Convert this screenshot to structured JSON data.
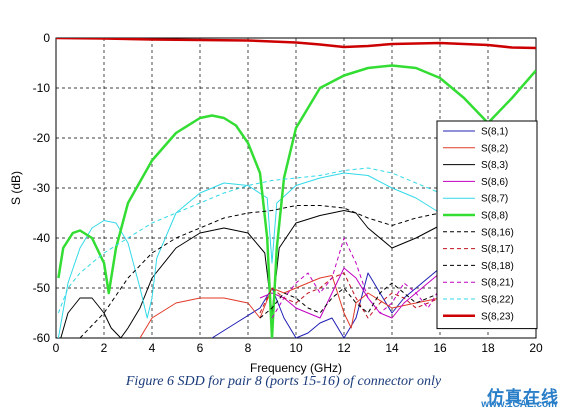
{
  "chart_data": {
    "type": "line",
    "title": "",
    "xlabel": "Frequency (GHz)",
    "ylabel": "S (dB)",
    "xlim": [
      0,
      20
    ],
    "ylim": [
      -60,
      0
    ],
    "xticks": [
      "0",
      "2",
      "4",
      "6",
      "8",
      "10",
      "12",
      "14",
      "16",
      "18",
      "20"
    ],
    "yticks": [
      "0",
      "-10",
      "-20",
      "-30",
      "-40",
      "-50",
      "-60"
    ],
    "grid": true,
    "legend_position": "right",
    "series": [
      {
        "name": "S(8,1)",
        "color": "#1f1fb4",
        "dash": false,
        "width": 1,
        "x": [
          6.5,
          7.5,
          8.5,
          9.0,
          9.5,
          10.0,
          10.5,
          11.0,
          11.5,
          12.0,
          12.5,
          13.0,
          13.5,
          14.0,
          14.5,
          15.0,
          15.5,
          16.0
        ],
        "y": [
          -60,
          -57,
          -54,
          -50,
          -56,
          -60,
          -59,
          -57,
          -56,
          -60,
          -56,
          -47,
          -51,
          -55,
          -52,
          -50,
          -48,
          -46
        ]
      },
      {
        "name": "S(8,2)",
        "color": "#e03a2a",
        "dash": false,
        "width": 1,
        "x": [
          3.5,
          4.0,
          5.0,
          6.0,
          7.0,
          8.0,
          8.5,
          9.0,
          9.5,
          10.0,
          10.5,
          11.0,
          11.5,
          12.0,
          12.3,
          12.5,
          13.0,
          14.0,
          15.0,
          16.0
        ],
        "y": [
          -60,
          -56,
          -53,
          -52,
          -52,
          -53,
          -56,
          -50,
          -51,
          -50,
          -49,
          -48,
          -47.5,
          -55,
          -58,
          -53,
          -51,
          -54,
          -53,
          -52
        ]
      },
      {
        "name": "S(8,3)",
        "color": "#000000",
        "dash": false,
        "width": 1,
        "x": [
          0.2,
          0.5,
          1.0,
          1.5,
          2.0,
          2.3,
          2.7,
          3.0,
          3.5,
          4.0,
          5.0,
          6.0,
          7.0,
          8.0,
          8.7,
          9.0,
          9.3,
          10.0,
          11.0,
          12.0,
          12.5,
          13.0,
          14.0,
          15.0,
          16.0
        ],
        "y": [
          -60,
          -55,
          -52,
          -52,
          -55,
          -58,
          -60,
          -58,
          -54,
          -48,
          -42,
          -39,
          -38,
          -39,
          -43,
          -55,
          -42,
          -37,
          -35.5,
          -34.5,
          -35,
          -38,
          -42,
          -40,
          -37.5
        ]
      },
      {
        "name": "S(8,6)",
        "color": "#c000c0",
        "dash": false,
        "width": 1,
        "x": [
          8.5,
          9.0,
          9.5,
          10.0,
          10.5,
          11.0,
          11.5,
          12.0,
          12.5,
          13.0,
          13.5,
          14.0,
          14.5,
          15.0,
          15.5,
          16.0
        ],
        "y": [
          -52,
          -51,
          -52,
          -54,
          -55,
          -56,
          -51,
          -46,
          -48,
          -52,
          -55,
          -56,
          -53,
          -51,
          -49,
          -47
        ]
      },
      {
        "name": "S(8,7)",
        "color": "#33d9e8",
        "dash": false,
        "width": 1,
        "x": [
          0.1,
          0.5,
          1.0,
          1.5,
          2.0,
          2.5,
          3.0,
          3.5,
          3.8,
          4.0,
          4.2,
          5.0,
          6.0,
          7.0,
          8.0,
          8.8,
          9.0,
          9.2,
          10.0,
          11.0,
          12.0,
          13.0,
          14.0,
          15.0,
          16.0
        ],
        "y": [
          -60,
          -49,
          -42,
          -38,
          -36.5,
          -37,
          -41,
          -50,
          -56,
          -52,
          -44,
          -35,
          -31,
          -29,
          -29.5,
          -32,
          -45,
          -33,
          -29.5,
          -28,
          -27,
          -27.5,
          -30,
          -32,
          -35
        ]
      },
      {
        "name": "S(8,8)",
        "color": "#33dd33",
        "dash": false,
        "width": 2.5,
        "x": [
          0.1,
          0.3,
          0.7,
          1.0,
          1.5,
          2.0,
          2.2,
          2.5,
          3.0,
          4.0,
          5.0,
          6.0,
          6.5,
          7.0,
          7.5,
          8.0,
          8.5,
          8.8,
          9.0,
          9.2,
          9.5,
          10.0,
          11.0,
          12.0,
          13.0,
          14.0,
          15.0,
          16.0,
          17.0,
          18.0,
          19.0,
          20.0
        ],
        "y": [
          -48,
          -42,
          -39,
          -38.5,
          -40,
          -45,
          -51,
          -42,
          -33,
          -24.5,
          -19,
          -16,
          -15.5,
          -16,
          -17.5,
          -21,
          -27,
          -40,
          -60,
          -42,
          -28,
          -18,
          -10,
          -7.5,
          -6,
          -5.5,
          -6,
          -8,
          -12,
          -17,
          -12,
          -6.5
        ]
      },
      {
        "name": "S(8,16)",
        "color": "#000000",
        "dash": true,
        "width": 1,
        "x": [
          1.0,
          2.0,
          3.0,
          4.0,
          5.0,
          6.0,
          7.0,
          8.0,
          9.0,
          10.0,
          11.0,
          12.0,
          13.0,
          14.0,
          15.0,
          16.0
        ],
        "y": [
          -60,
          -55,
          -48,
          -43,
          -40,
          -38,
          -36,
          -35,
          -34.5,
          -33.5,
          -33.5,
          -34,
          -36,
          -37.5,
          -36,
          -35
        ]
      },
      {
        "name": "S(8,17)",
        "color": "#c0141e",
        "dash": true,
        "width": 1,
        "x": [
          8.5,
          9.0,
          9.5,
          10.0,
          10.5,
          11.0,
          11.5,
          12.0,
          12.5,
          13.0,
          13.5,
          14.0,
          14.5,
          15.0,
          15.5,
          16.0
        ],
        "y": [
          -55,
          -50,
          -52,
          -53,
          -51,
          -50,
          -48,
          -47,
          -52,
          -56,
          -53,
          -51,
          -52,
          -54,
          -53,
          -52
        ]
      },
      {
        "name": "S(8,18)",
        "color": "#000000",
        "dash": true,
        "width": 1,
        "x": [
          8.5,
          9.0,
          9.5,
          10.0,
          10.5,
          11.0,
          11.5,
          12.0,
          12.5,
          13.0,
          13.5,
          14.0,
          14.5,
          15.0,
          15.5,
          16.0
        ],
        "y": [
          -56,
          -54,
          -51,
          -52,
          -54,
          -55,
          -52,
          -50,
          -53,
          -55,
          -51,
          -49,
          -51,
          -53,
          -52,
          -51
        ]
      },
      {
        "name": "S(8,21)",
        "color": "#c000c0",
        "dash": true,
        "width": 1,
        "x": [
          9.0,
          9.5,
          10.0,
          10.5,
          11.0,
          11.5,
          12.0,
          12.5,
          13.0,
          13.5,
          14.0,
          14.5,
          15.0,
          15.5,
          16.0
        ],
        "y": [
          -56,
          -52,
          -49,
          -47,
          -51,
          -48,
          -40,
          -45,
          -52,
          -55,
          -53,
          -49,
          -51,
          -54,
          -50
        ]
      },
      {
        "name": "S(8,22)",
        "color": "#33d9e8",
        "dash": true,
        "width": 1,
        "x": [
          0.1,
          0.5,
          1.0,
          2.0,
          3.0,
          4.0,
          5.0,
          6.0,
          7.0,
          8.0,
          9.0,
          10.0,
          11.0,
          12.0,
          13.0,
          14.0,
          15.0,
          16.0
        ],
        "y": [
          -55,
          -50,
          -47,
          -43,
          -40,
          -37,
          -35,
          -33,
          -31,
          -29.5,
          -28.5,
          -28,
          -27.5,
          -26.5,
          -26,
          -27,
          -29,
          -31
        ]
      },
      {
        "name": "S(8,23)",
        "color": "#cc0000",
        "dash": false,
        "width": 2.5,
        "x": [
          0,
          2,
          4,
          6,
          8,
          10,
          11,
          12,
          13,
          14,
          16,
          18,
          19,
          20
        ],
        "y": [
          0,
          -0.1,
          -0.3,
          -0.4,
          -0.5,
          -0.9,
          -1.3,
          -1.8,
          -1.6,
          -1.2,
          -1.0,
          -1.4,
          -1.9,
          -2.0
        ]
      }
    ]
  },
  "caption": "Figure 6 SDD for pair 8 (ports 15-16) of connector only",
  "watermark": {
    "text": "仿真在线",
    "url": "www.1CAE.com"
  }
}
